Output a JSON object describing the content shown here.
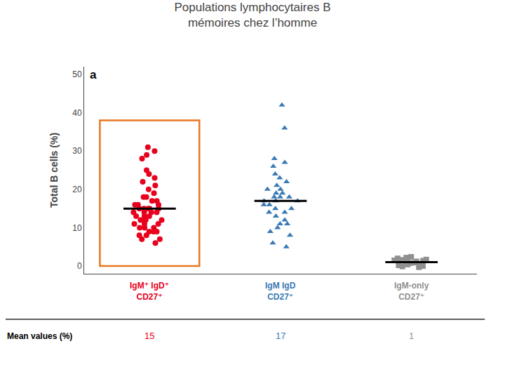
{
  "chart_data": {
    "type": "strip",
    "title": "Populations lymphocytaires B\nmémoires chez l’homme",
    "ylabel": "Total B cells (%)",
    "panel_label": "a",
    "mean_label": "Mean values (%)",
    "categories": [
      "IgM⁺ IgD⁺\nCD27⁺",
      "IgM IgD\nCD27⁺",
      "IgM-only\nCD27⁺"
    ],
    "groups": [
      {
        "color": "#e8001c",
        "marker": "circle",
        "mean": 15,
        "values": [
          6,
          7,
          7,
          8,
          8,
          9,
          9,
          9,
          10,
          10,
          10,
          11,
          11,
          11,
          12,
          12,
          12,
          13,
          13,
          13,
          14,
          14,
          14,
          14,
          15,
          15,
          15,
          15,
          15,
          16,
          16,
          16,
          17,
          17,
          18,
          18,
          19,
          20,
          21,
          22,
          23,
          24,
          25,
          28,
          29,
          30,
          31
        ]
      },
      {
        "color": "#3a7ab5",
        "marker": "triangle-up",
        "mean": 17,
        "values": [
          5,
          6,
          8,
          9,
          10,
          11,
          11,
          12,
          13,
          14,
          14,
          15,
          15,
          16,
          16,
          17,
          17,
          17,
          18,
          18,
          18,
          19,
          19,
          20,
          20,
          21,
          22,
          23,
          24,
          26,
          27,
          28,
          36,
          42
        ]
      },
      {
        "color": "#909090",
        "marker": "square",
        "mean": 1,
        "values": [
          -0.3,
          -0.1,
          0.0,
          0.2,
          0.4,
          0.6,
          0.8,
          0.9,
          1.0,
          1.1,
          1.2,
          1.3,
          1.4,
          1.5,
          1.6,
          1.7,
          1.8,
          2.0,
          2.2,
          2.4
        ]
      }
    ],
    "highlight": {
      "category": 0,
      "ylim": [
        0,
        38
      ],
      "color": "#e87722"
    },
    "ylim": [
      -2,
      52
    ],
    "yticks": [
      0,
      10,
      20,
      30,
      40,
      50
    ],
    "grid": false,
    "tick_labels": "y"
  }
}
